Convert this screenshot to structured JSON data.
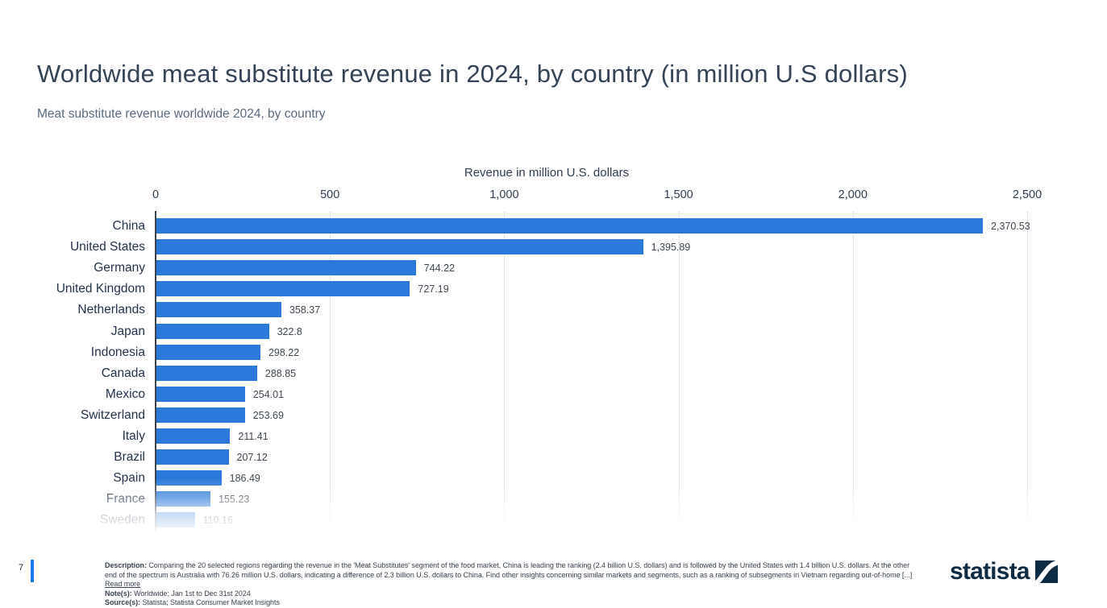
{
  "page": {
    "title": "Worldwide meat substitute revenue in 2024, by country (in million U.S dollars)",
    "subtitle": "Meat substitute revenue worldwide 2024, by country",
    "page_number": "7",
    "footer": {
      "description_label": "Description:",
      "description_text": "Comparing the 20 selected regions regarding the revenue in the 'Meat Substitutes' segment of the food market, China is leading the ranking (2.4 billion U.S. dollars) and is followed by the United States with 1.4 billion U.S. dollars. At the other end of the spectrum is Australia with 76.26 million U.S. dollars, indicating a difference of 2.3 billion U.S. dollars to China. Find other insights concerning similar markets and segments, such as a ranking of subsegments in Vietnam regarding out-of-home [...]",
      "read_more_label": "Read more",
      "notes_label": "Note(s):",
      "notes_text": "Worldwide; Jan 1st to Dec 31st 2024",
      "sources_label": "Source(s):",
      "sources_text": "Statista; Statista Consumer Market Insights"
    },
    "brand": {
      "logo_text": "statista"
    }
  },
  "chart_data": {
    "type": "bar",
    "orientation": "horizontal",
    "title": "Worldwide meat substitute revenue in 2024, by country (in million U.S dollars)",
    "axis_title": "Revenue in million U.S. dollars",
    "xlabel": "Revenue in million U.S. dollars",
    "ylabel": "",
    "xlim": [
      0,
      2500
    ],
    "x_ticks": [
      "0",
      "500",
      "1,000",
      "1,500",
      "2,000",
      "2,500"
    ],
    "x_tick_values": [
      0,
      500,
      1000,
      1500,
      2000,
      2500
    ],
    "grid": "vertical-dotted",
    "legend": "none",
    "bar_color": "#2b79da",
    "categories": [
      "China",
      "United States",
      "Germany",
      "United Kingdom",
      "Netherlands",
      "Japan",
      "Indonesia",
      "Canada",
      "Mexico",
      "Switzerland",
      "Italy",
      "Brazil",
      "Spain",
      "France",
      "Sweden"
    ],
    "values": [
      2370.53,
      1395.89,
      744.22,
      727.19,
      358.37,
      322.8,
      298.22,
      288.85,
      254.01,
      253.69,
      211.41,
      207.12,
      186.49,
      155.23,
      110.16
    ],
    "value_labels": [
      "2,370.53",
      "1,395.89",
      "744.22",
      "727.19",
      "358.37",
      "322.8",
      "298.22",
      "288.85",
      "254.01",
      "253.69",
      "211.41",
      "207.12",
      "186.49",
      "155.23",
      "110.16"
    ],
    "faded_bottom_categories": [
      "France",
      "Sweden"
    ]
  },
  "colors": {
    "bar": "#2b79da",
    "title_text": "#344456",
    "subtitle_text": "#5a6a7e",
    "page_marker_blue": "#1878e8",
    "logo_navy": "#0e2b44"
  }
}
